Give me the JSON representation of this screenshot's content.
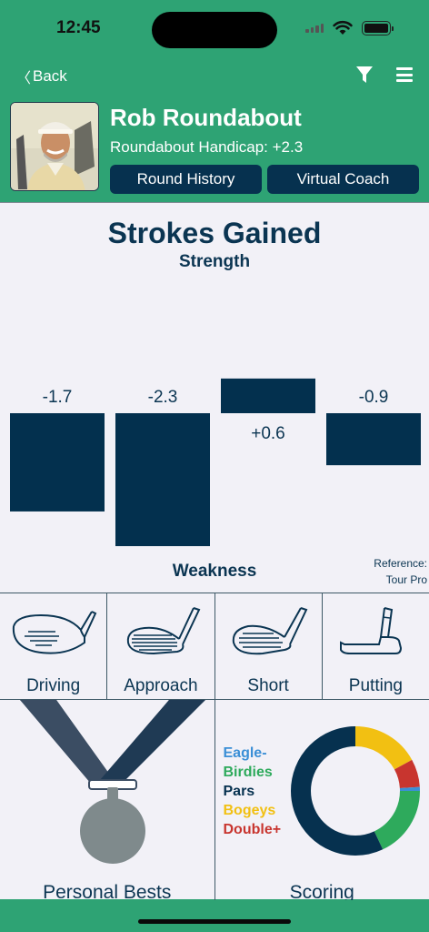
{
  "status": {
    "time": "12:45"
  },
  "nav": {
    "back_label": "Back"
  },
  "profile": {
    "name": "Rob Roundabout",
    "handicap": "Roundabout Handicap: +2.3",
    "round_history": "Round History",
    "virtual_coach": "Virtual Coach"
  },
  "strokes": {
    "title": "Strokes Gained",
    "top_label": "Strength",
    "bottom_label": "Weakness",
    "reference_line1": "Reference:",
    "reference_line2": "Tour Pro"
  },
  "chart_data": {
    "type": "bar",
    "categories": [
      "Driving",
      "Approach",
      "Short",
      "Putting"
    ],
    "values": [
      -1.7,
      -2.3,
      0.6,
      -0.9
    ],
    "data_labels": [
      "-1.7",
      "-2.3",
      "+0.6",
      "-0.9"
    ],
    "title": "Strokes Gained",
    "bar_color": "#03304e"
  },
  "categories": [
    {
      "label": "Driving",
      "icon": "driver-club-icon"
    },
    {
      "label": "Approach",
      "icon": "iron-club-icon"
    },
    {
      "label": "Short",
      "icon": "wedge-club-icon"
    },
    {
      "label": "Putting",
      "icon": "putter-club-icon"
    }
  ],
  "tiles": {
    "personal_bests": "Personal Bests",
    "scoring": "Scoring"
  },
  "scoring_legend": [
    {
      "label": "Eagle-",
      "color": "#3b8fd6"
    },
    {
      "label": "Birdies",
      "color": "#2eaa5c"
    },
    {
      "label": "Pars",
      "color": "#06314f"
    },
    {
      "label": "Bogeys",
      "color": "#f2c012"
    },
    {
      "label": "Double+",
      "color": "#c8352f"
    }
  ],
  "scoring_shares": [
    {
      "name": "Bogeys",
      "value": 0.17,
      "color": "#f2c012"
    },
    {
      "name": "Double+",
      "value": 0.07,
      "color": "#c8352f"
    },
    {
      "name": "Eagle-",
      "value": 0.01,
      "color": "#3b8fd6"
    },
    {
      "name": "Birdies",
      "value": 0.18,
      "color": "#2eaa5c"
    },
    {
      "name": "Pars",
      "value": 0.57,
      "color": "#06314f"
    }
  ],
  "colors": {
    "header_green": "#2ea374",
    "navy": "#06314f",
    "card_bg": "#f2f1f7"
  }
}
